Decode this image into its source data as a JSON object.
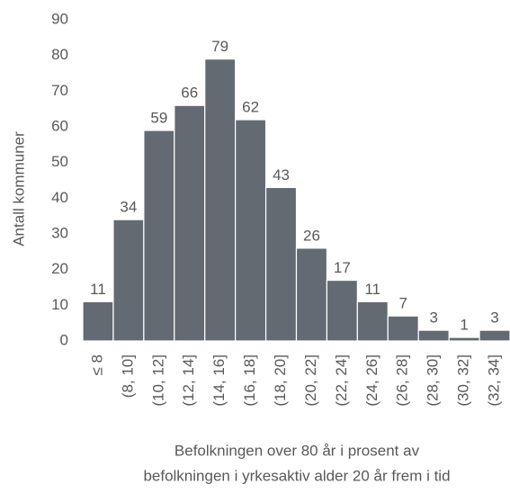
{
  "chart_data": {
    "type": "bar",
    "ylabel": "Antall kommuner",
    "xlabel": [
      "Befolkningen over 80 år i prosent av",
      "befolkningen i yrkesaktiv alder 20 år frem i tid"
    ],
    "categories": [
      "≤ 8",
      "(8, 10]",
      "(10, 12]",
      "(12, 14]",
      "(14, 16]",
      "(16, 18]",
      "(18, 20]",
      "(20, 22]",
      "(22, 24]",
      "(24, 26]",
      "(26, 28]",
      "(28, 30]",
      "(30, 32]",
      "(32, 34]"
    ],
    "values": [
      11,
      34,
      59,
      66,
      79,
      62,
      43,
      26,
      17,
      11,
      7,
      3,
      1,
      3
    ],
    "color": "#646a72",
    "ylim": [
      0,
      90
    ],
    "yticks": [
      0,
      10,
      20,
      30,
      40,
      50,
      60,
      70,
      80,
      90
    ],
    "grid": false
  }
}
